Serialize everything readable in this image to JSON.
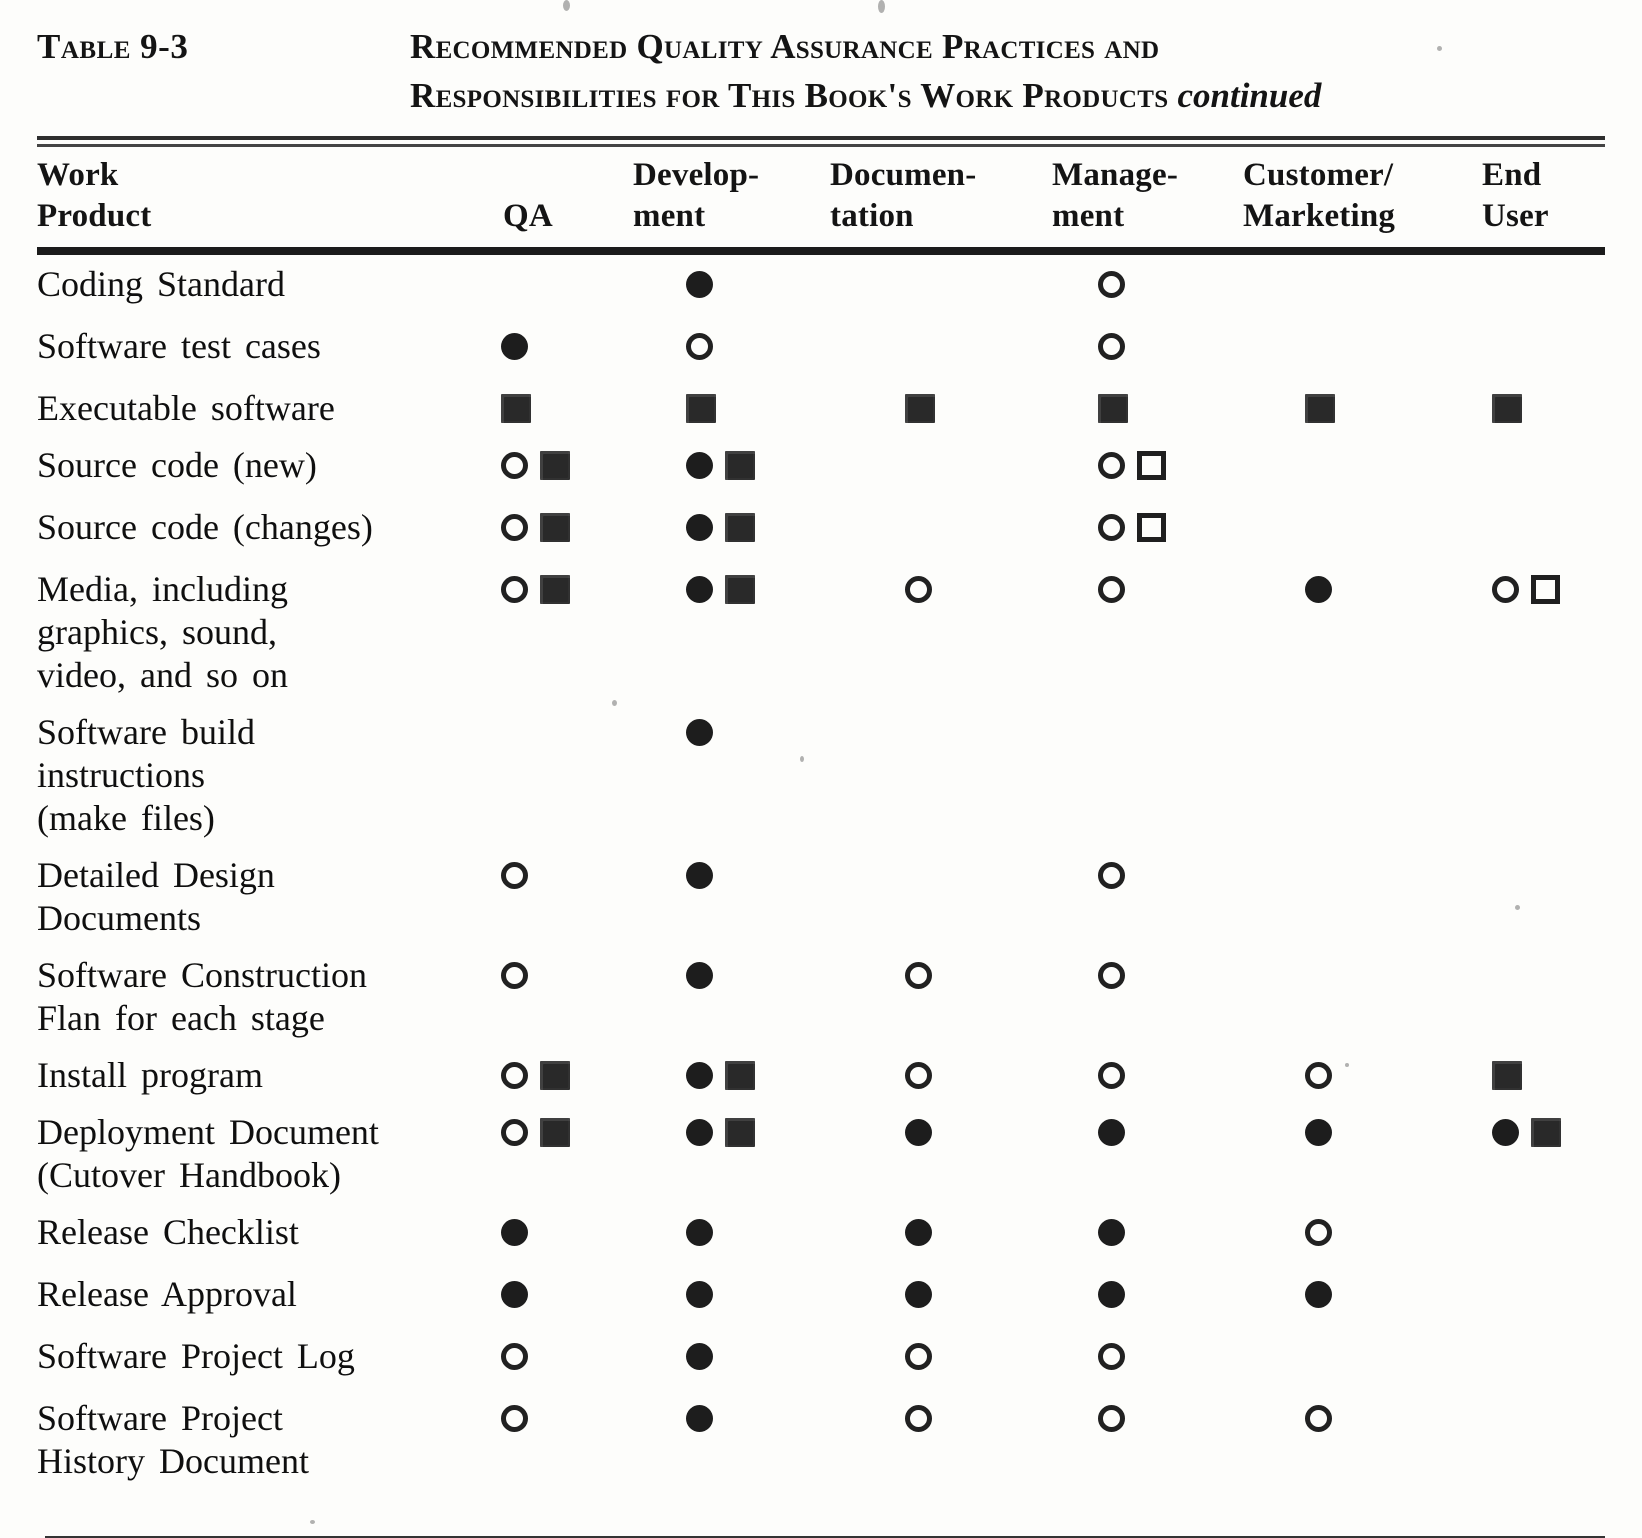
{
  "caption": {
    "label": "Table 9-3",
    "title_line1": "Recommended Quality Assurance Practices and",
    "title_line2": "Responsibilities for This Book's Work Products",
    "continued": "continued"
  },
  "symbol_glyphs": {
    "filled-circle": "●",
    "open-circle": "○",
    "filled-square": "■",
    "open-square": "□"
  },
  "colors": {
    "paper": "#fdfdfb",
    "ink": "#141414"
  },
  "header": {
    "columns": [
      {
        "id": "product",
        "line1": "Work",
        "line2": "Product"
      },
      {
        "id": "qa",
        "line1": "",
        "line2": "QA"
      },
      {
        "id": "development",
        "line1": "Develop-",
        "line2": "ment"
      },
      {
        "id": "documentation",
        "line1": "Documen-",
        "line2": "tation"
      },
      {
        "id": "management",
        "line1": "Manage-",
        "line2": "ment"
      },
      {
        "id": "customer-marketing",
        "line1": "Customer/",
        "line2": "Marketing"
      },
      {
        "id": "end-user",
        "line1": "End",
        "line2": "User"
      }
    ]
  },
  "rows": [
    {
      "product_lines": [
        "Coding Standard"
      ],
      "cells": {
        "qa": [],
        "development": [
          "filled-circle"
        ],
        "documentation": [],
        "management": [
          "open-circle"
        ],
        "customer_marketing": [],
        "end_user": []
      }
    },
    {
      "product_lines": [
        "Software test cases"
      ],
      "cells": {
        "qa": [
          "filled-circle"
        ],
        "development": [
          "open-circle"
        ],
        "documentation": [],
        "management": [
          "open-circle"
        ],
        "customer_marketing": [],
        "end_user": []
      }
    },
    {
      "product_lines": [
        "Executable software"
      ],
      "cells": {
        "qa": [
          "filled-square"
        ],
        "development": [
          "filled-square"
        ],
        "documentation": [
          "filled-square"
        ],
        "management": [
          "filled-square"
        ],
        "customer_marketing": [
          "filled-square"
        ],
        "end_user": [
          "filled-square"
        ]
      }
    },
    {
      "product_lines": [
        "Source code (new)"
      ],
      "cells": {
        "qa": [
          "open-circle",
          "filled-square"
        ],
        "development": [
          "filled-circle",
          "filled-square"
        ],
        "documentation": [],
        "management": [
          "open-circle",
          "open-square"
        ],
        "customer_marketing": [],
        "end_user": []
      }
    },
    {
      "product_lines": [
        "Source code (changes)"
      ],
      "cells": {
        "qa": [
          "open-circle",
          "filled-square"
        ],
        "development": [
          "filled-circle",
          "filled-square"
        ],
        "documentation": [],
        "management": [
          "open-circle",
          "open-square"
        ],
        "customer_marketing": [],
        "end_user": []
      }
    },
    {
      "product_lines": [
        "Media, including",
        "graphics, sound,",
        "video, and so on"
      ],
      "cells": {
        "qa": [
          "open-circle",
          "filled-square"
        ],
        "development": [
          "filled-circle",
          "filled-square"
        ],
        "documentation": [
          "open-circle"
        ],
        "management": [
          "open-circle"
        ],
        "customer_marketing": [
          "filled-circle"
        ],
        "end_user": [
          "open-circle",
          "open-square"
        ]
      }
    },
    {
      "product_lines": [
        "Software build",
        "instructions",
        "(make files)"
      ],
      "cells": {
        "qa": [],
        "development": [
          "filled-circle"
        ],
        "documentation": [],
        "management": [],
        "customer_marketing": [],
        "end_user": []
      }
    },
    {
      "product_lines": [
        "Detailed Design",
        "Documents"
      ],
      "cells": {
        "qa": [
          "open-circle"
        ],
        "development": [
          "filled-circle"
        ],
        "documentation": [],
        "management": [
          "open-circle"
        ],
        "customer_marketing": [],
        "end_user": []
      }
    },
    {
      "product_lines": [
        "Software Construction",
        "Flan for each stage"
      ],
      "cells": {
        "qa": [
          "open-circle"
        ],
        "development": [
          "filled-circle"
        ],
        "documentation": [
          "open-circle"
        ],
        "management": [
          "open-circle"
        ],
        "customer_marketing": [],
        "end_user": []
      }
    },
    {
      "product_lines": [
        "Install program"
      ],
      "cells": {
        "qa": [
          "open-circle",
          "filled-square"
        ],
        "development": [
          "filled-circle",
          "filled-square"
        ],
        "documentation": [
          "open-circle"
        ],
        "management": [
          "open-circle"
        ],
        "customer_marketing": [
          "open-circle"
        ],
        "end_user": [
          "filled-square"
        ]
      }
    },
    {
      "product_lines": [
        "Deployment Document",
        "(Cutover Handbook)"
      ],
      "cells": {
        "qa": [
          "open-circle",
          "filled-square"
        ],
        "development": [
          "filled-circle",
          "filled-square"
        ],
        "documentation": [
          "filled-circle"
        ],
        "management": [
          "filled-circle"
        ],
        "customer_marketing": [
          "filled-circle"
        ],
        "end_user": [
          "filled-circle",
          "filled-square"
        ]
      }
    },
    {
      "product_lines": [
        "Release Checklist"
      ],
      "cells": {
        "qa": [
          "filled-circle"
        ],
        "development": [
          "filled-circle"
        ],
        "documentation": [
          "filled-circle"
        ],
        "management": [
          "filled-circle"
        ],
        "customer_marketing": [
          "open-circle"
        ],
        "end_user": []
      }
    },
    {
      "product_lines": [
        "Release Approval"
      ],
      "cells": {
        "qa": [
          "filled-circle"
        ],
        "development": [
          "filled-circle"
        ],
        "documentation": [
          "filled-circle"
        ],
        "management": [
          "filled-circle"
        ],
        "customer_marketing": [
          "filled-circle"
        ],
        "end_user": []
      }
    },
    {
      "product_lines": [
        "Software Project Log"
      ],
      "cells": {
        "qa": [
          "open-circle"
        ],
        "development": [
          "filled-circle"
        ],
        "documentation": [
          "open-circle"
        ],
        "management": [
          "open-circle"
        ],
        "customer_marketing": [],
        "end_user": []
      }
    },
    {
      "product_lines": [
        "Software Project",
        "History Document"
      ],
      "cells": {
        "qa": [
          "open-circle"
        ],
        "development": [
          "filled-circle"
        ],
        "documentation": [
          "open-circle"
        ],
        "management": [
          "open-circle"
        ],
        "customer_marketing": [
          "open-circle"
        ],
        "end_user": []
      }
    }
  ]
}
